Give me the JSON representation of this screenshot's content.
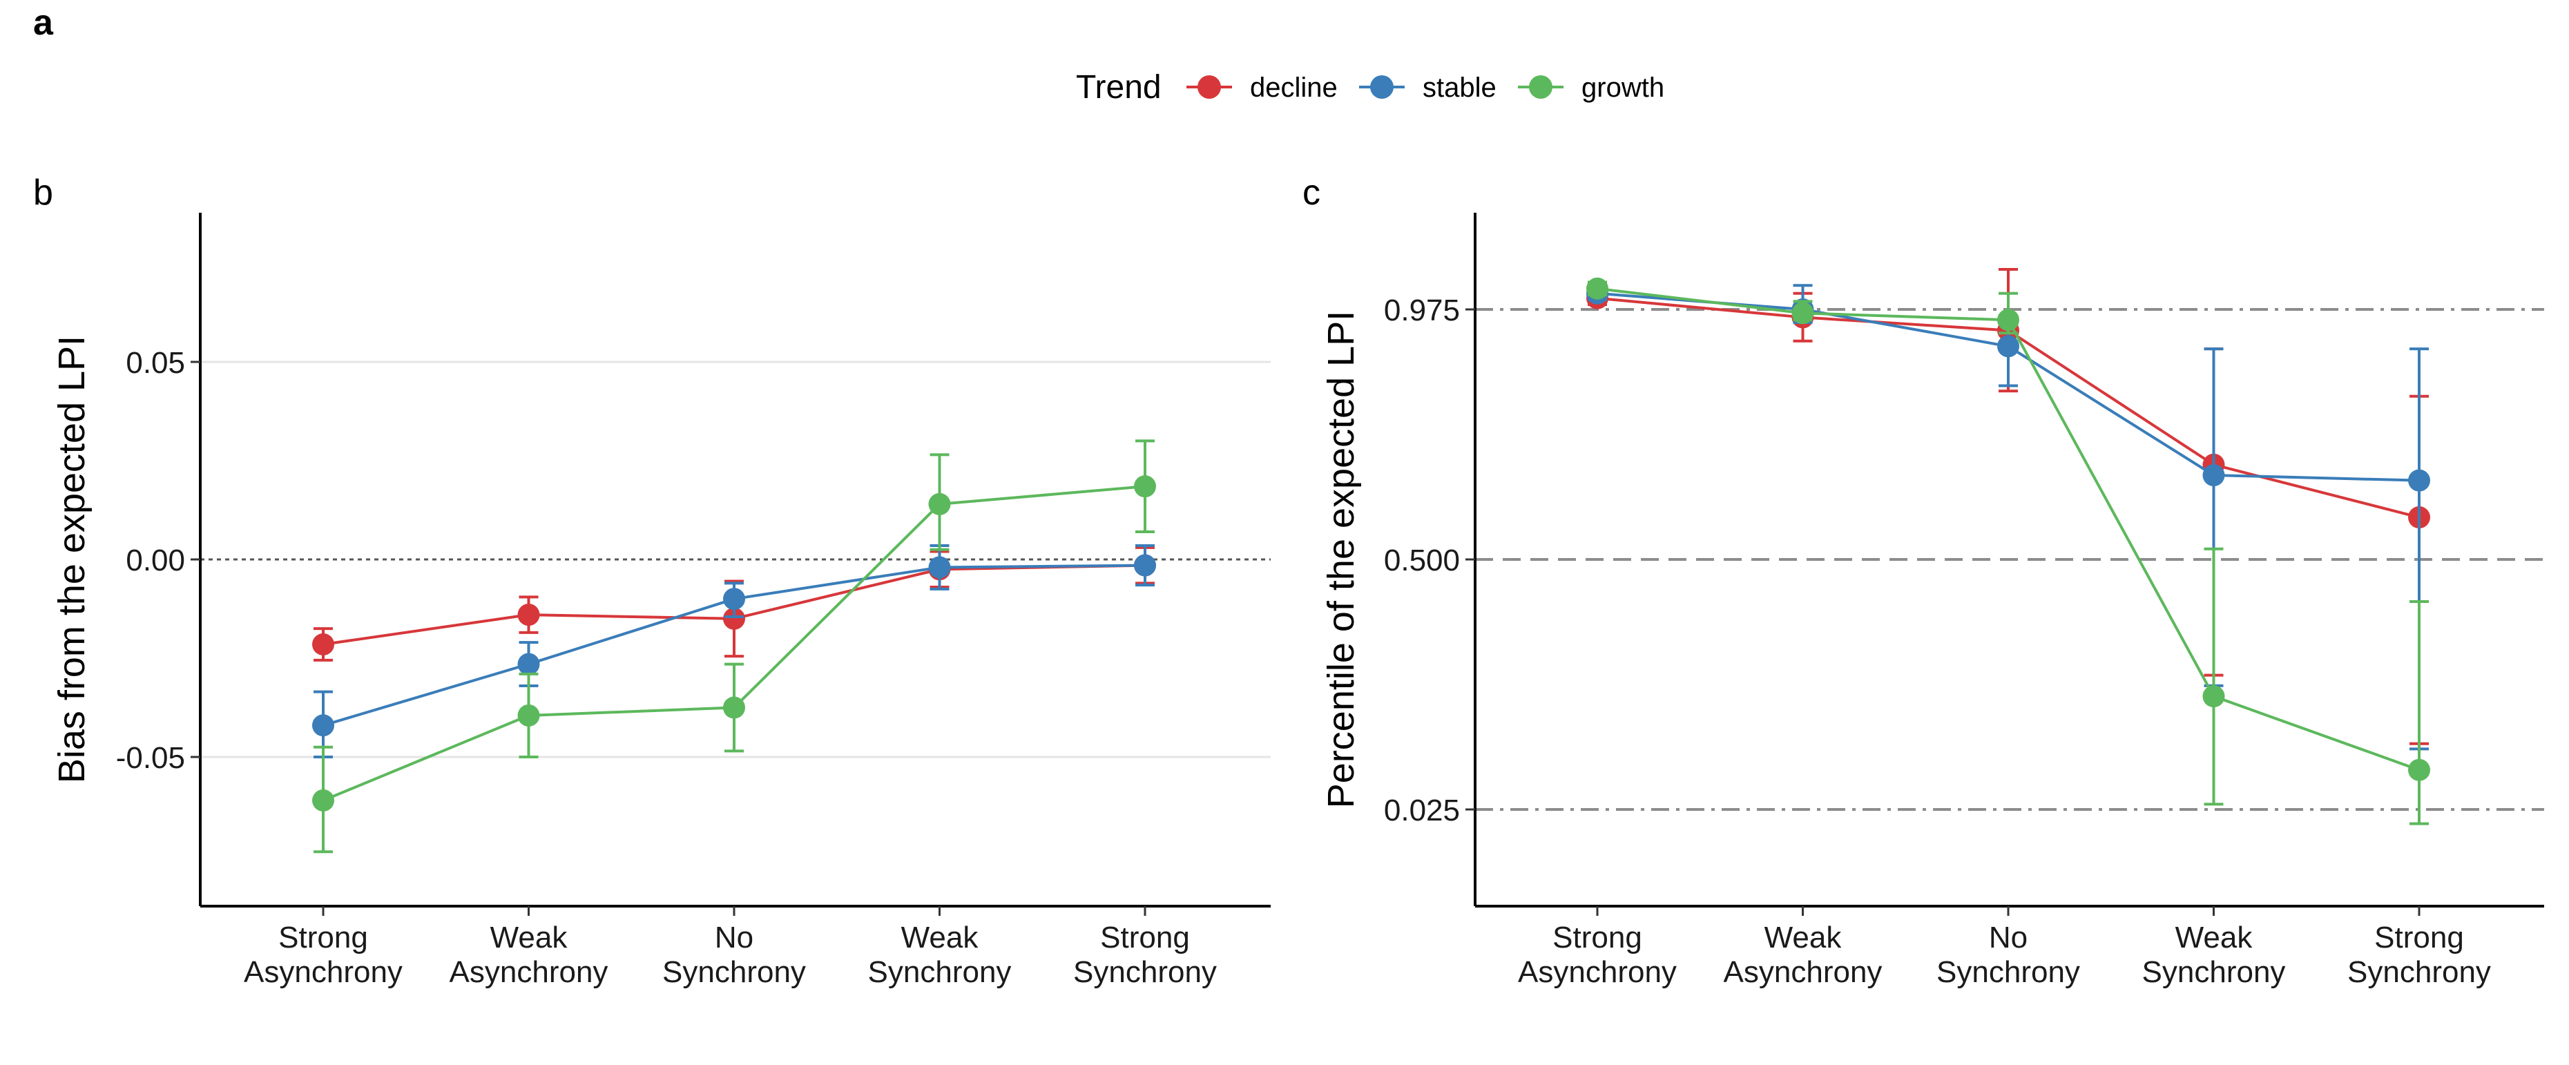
{
  "figure": {
    "label_a": "a",
    "legend": {
      "title": "Trend",
      "items": [
        {
          "label": "decline",
          "color": "#D7373A"
        },
        {
          "label": "stable",
          "color": "#3A7DB9"
        },
        {
          "label": "growth",
          "color": "#5CB85C"
        }
      ]
    }
  },
  "chart_data": [
    {
      "panel": "b",
      "type": "line",
      "title": "",
      "ylabel": "Bias from the expected LPI",
      "xlabel": "",
      "categories": [
        "Strong\nAsynchrony",
        "Weak\nAsynchrony",
        "No\nSynchrony",
        "Weak\nSynchrony",
        "Strong\nSynchrony"
      ],
      "y_ticks": [
        {
          "value": 0.05,
          "label": "0.05"
        },
        {
          "value": 0.0,
          "label": "0.00"
        },
        {
          "value": -0.05,
          "label": "-0.05"
        }
      ],
      "ylim": [
        -0.087,
        0.087
      ],
      "y_grid": true,
      "reference_line": {
        "y": 0.0,
        "style": "dotted"
      },
      "series": [
        {
          "name": "decline",
          "color": "#D7373A",
          "values": [
            -0.0215,
            -0.014,
            -0.015,
            -0.0025,
            -0.0015
          ],
          "error_low": [
            -0.0255,
            -0.0185,
            -0.0245,
            -0.007,
            -0.006
          ],
          "error_high": [
            -0.0175,
            -0.0095,
            -0.0055,
            0.002,
            0.003
          ]
        },
        {
          "name": "stable",
          "color": "#3A7DB9",
          "values": [
            -0.042,
            -0.0265,
            -0.01,
            -0.002,
            -0.0015
          ],
          "error_low": [
            -0.05,
            -0.032,
            -0.0145,
            -0.0075,
            -0.0065
          ],
          "error_high": [
            -0.0335,
            -0.021,
            -0.006,
            0.0035,
            0.0035
          ]
        },
        {
          "name": "growth",
          "color": "#5CB85C",
          "values": [
            -0.061,
            -0.0395,
            -0.0375,
            0.014,
            0.0185
          ],
          "error_low": [
            -0.074,
            -0.05,
            -0.0485,
            0.0025,
            0.007
          ],
          "error_high": [
            -0.0475,
            -0.029,
            -0.0265,
            0.0265,
            0.03
          ]
        }
      ]
    },
    {
      "panel": "c",
      "type": "line",
      "title": "",
      "ylabel": "Percentile of the expected LPI",
      "xlabel": "",
      "categories": [
        "Strong\nAsynchrony",
        "Weak\nAsynchrony",
        "No\nSynchrony",
        "Weak\nSynchrony",
        "Strong\nSynchrony"
      ],
      "y_scale": "percentile (nonlinear)",
      "y_ticks": [
        {
          "value": 0.975,
          "label": "0.975"
        },
        {
          "value": 0.5,
          "label": "0.500"
        },
        {
          "value": 0.025,
          "label": "0.025"
        }
      ],
      "y_grid": false,
      "reference_lines": [
        {
          "y": 0.975,
          "style": "dotdash"
        },
        {
          "y": 0.5,
          "style": "dashed"
        },
        {
          "y": 0.025,
          "style": "dotdash"
        }
      ],
      "series": [
        {
          "name": "decline",
          "color": "#D7373A",
          "values": [
            0.982,
            0.96,
            0.935,
            0.68,
            0.58
          ],
          "error_low": [
            0.978,
            0.915,
            0.82,
            0.28,
            0.15
          ],
          "error_high": [
            0.986,
            0.985,
            1.0,
            0.9,
            0.81
          ]
        },
        {
          "name": "stable",
          "color": "#3A7DB9",
          "values": [
            0.985,
            0.975,
            0.905,
            0.66,
            0.65
          ],
          "error_low": [
            0.981,
            0.95,
            0.83,
            0.26,
            0.14
          ],
          "error_high": [
            0.989,
            0.99,
            0.96,
            0.9,
            0.9
          ]
        },
        {
          "name": "growth",
          "color": "#5CB85C",
          "values": [
            0.988,
            0.968,
            0.955,
            0.24,
            0.1
          ],
          "error_low": [
            0.984,
            0.955,
            0.93,
            0.035,
            0.02
          ],
          "error_high": [
            0.992,
            0.98,
            0.985,
            0.52,
            0.42
          ]
        }
      ]
    }
  ]
}
